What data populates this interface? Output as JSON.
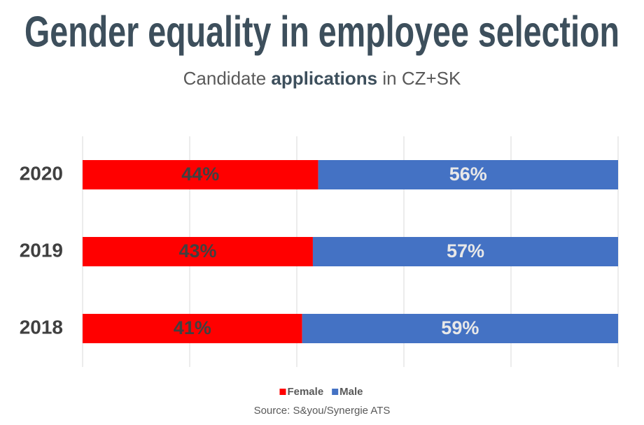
{
  "chart_data": {
    "type": "stacked_barh",
    "title": "Gender equality in employee selection",
    "subtitle": {
      "before": "Candidate",
      "bold": "applications",
      "after": "in CZ+SK"
    },
    "categories": [
      "2020",
      "2019",
      "2018"
    ],
    "series": [
      {
        "name": "Female",
        "color": "#ff0000",
        "label_color": "#404040",
        "values": [
          44,
          43,
          41
        ],
        "value_labels": [
          "44%",
          "43%",
          "41%"
        ]
      },
      {
        "name": "Male",
        "color": "#4472c4",
        "label_color": "#e8e8e8",
        "values": [
          56,
          57,
          59
        ],
        "value_labels": [
          "56%",
          "57%",
          "59%"
        ]
      }
    ],
    "xlim": [
      0,
      100
    ],
    "xticks": [
      0,
      20,
      40,
      60,
      80,
      100
    ],
    "grid": true,
    "legend": "bottom",
    "source": "Source: S&you/Synergie ATS"
  }
}
